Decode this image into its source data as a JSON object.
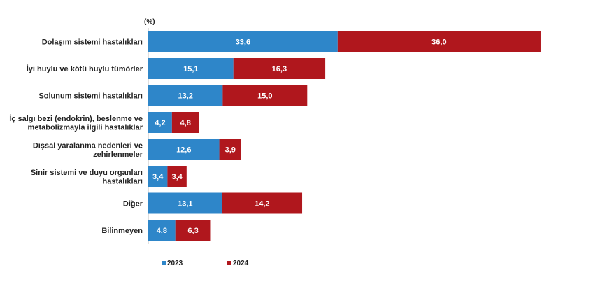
{
  "chart_data": {
    "type": "bar",
    "orientation": "horizontal",
    "stacked": true,
    "unit_label": "(%)",
    "categories": [
      [
        "Dolaşım sistemi hastalıkları"
      ],
      [
        "İyi huylu ve kötü huylu tümörler"
      ],
      [
        "Solunum sistemi hastalıkları"
      ],
      [
        "İç salgı bezi (endokrin), beslenme ve",
        "metabolizmayla ilgili hastalıklar"
      ],
      [
        "Dışsal yaralanma nedenleri ve",
        "zehirlenmeler"
      ],
      [
        "Sinir sistemi ve duyu organları",
        "hastalıkları"
      ],
      [
        "Diğer"
      ],
      [
        "Bilinmeyen"
      ]
    ],
    "series": [
      {
        "name": "2023",
        "color": "#2e86c9",
        "values": [
          33.6,
          15.1,
          13.2,
          4.2,
          12.6,
          3.4,
          13.1,
          4.8
        ],
        "labels": [
          "33,6",
          "15,1",
          "13,2",
          "4,2",
          "12,6",
          "3,4",
          "13,1",
          "4,8"
        ]
      },
      {
        "name": "2024",
        "color": "#b0171d",
        "values": [
          36.0,
          16.3,
          15.0,
          4.8,
          3.9,
          3.4,
          14.2,
          6.3
        ],
        "labels": [
          "36,0",
          "16,3",
          "15,0",
          "4,8",
          "3,9",
          "3,4",
          "14,2",
          "6,3"
        ]
      }
    ],
    "grid": false,
    "legend_position": "bottom"
  }
}
